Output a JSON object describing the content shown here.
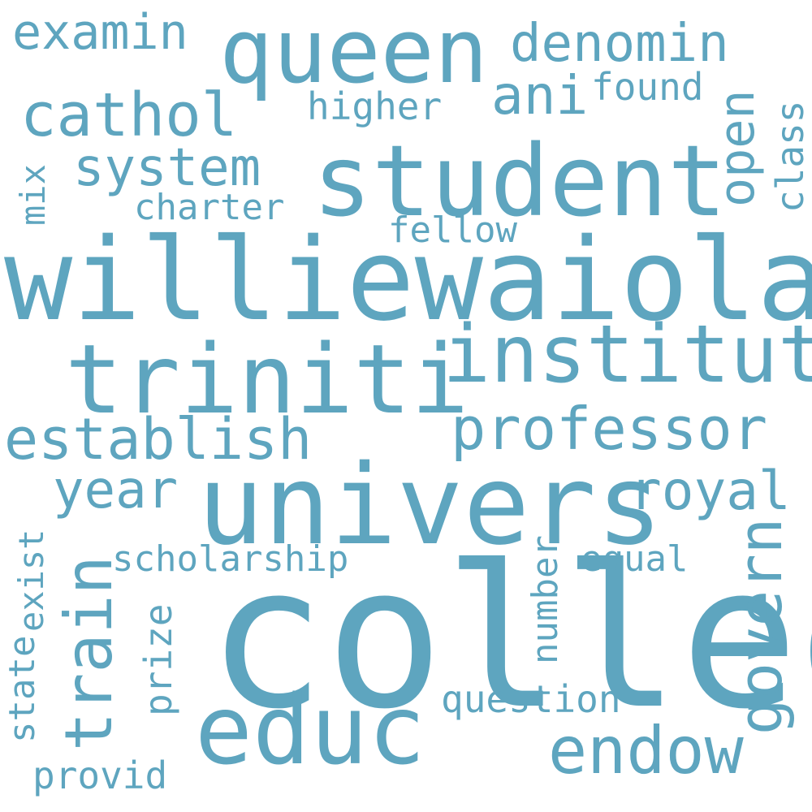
{
  "cloud": {
    "color": "#5ea5bf",
    "background": "#ffffff",
    "words": {
      "colleg": "colleg",
      "williewaiola": "williewaiola",
      "univers": "univers",
      "student": "student",
      "queen": "queen",
      "triniti": "triniti",
      "institut": "institut",
      "educ": "educ",
      "endow": "endow",
      "professor": "professor",
      "establish": "establish",
      "cathol": "cathol",
      "denomin": "denomin",
      "examin": "examin",
      "system": "system",
      "ani": "ani",
      "royal": "royal",
      "year": "year",
      "govern": "govern",
      "train": "train",
      "open": "open",
      "found": "found",
      "higher": "higher",
      "charter": "charter",
      "fellow": "fellow",
      "class": "class",
      "mix": "mix",
      "scholarship": "scholarship",
      "equal": "equal",
      "number": "number",
      "question": "question",
      "prize": "prize",
      "exist": "exist",
      "state": "state",
      "provid": "provid"
    }
  }
}
